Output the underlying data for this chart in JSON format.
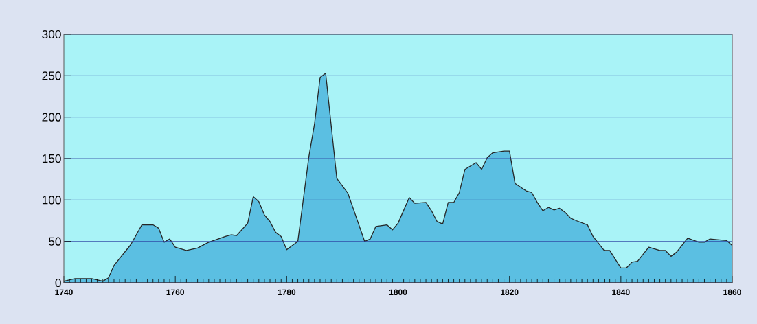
{
  "chart_data": {
    "type": "area",
    "x": [
      1740,
      1742,
      1745,
      1747,
      1748,
      1749,
      1752,
      1754,
      1756,
      1757,
      1758,
      1759,
      1760,
      1762,
      1764,
      1766,
      1769,
      1770,
      1771,
      1773,
      1774,
      1775,
      1776,
      1777,
      1778,
      1779,
      1780,
      1782,
      1784,
      1785,
      1786,
      1787,
      1789,
      1791,
      1794,
      1795,
      1796,
      1798,
      1799,
      1800,
      1802,
      1803,
      1805,
      1806,
      1807,
      1808,
      1809,
      1810,
      1811,
      1812,
      1814,
      1815,
      1816,
      1817,
      1819,
      1820,
      1821,
      1823,
      1824,
      1825,
      1826,
      1827,
      1828,
      1829,
      1830,
      1831,
      1832,
      1834,
      1835,
      1837,
      1838,
      1840,
      1841,
      1842,
      1843,
      1845,
      1847,
      1848,
      1849,
      1850,
      1852,
      1854,
      1855,
      1856,
      1859,
      1860
    ],
    "series": [
      {
        "color": "#5bbfe2",
        "values": [
          2,
          5,
          5,
          2,
          6,
          21,
          46,
          70,
          70,
          66,
          49,
          53,
          43,
          39,
          42,
          49,
          56,
          58,
          57,
          72,
          104,
          98,
          82,
          74,
          61,
          56,
          40,
          50,
          153,
          192,
          248,
          253,
          126,
          108,
          50,
          53,
          68,
          70,
          64,
          72,
          103,
          96,
          97,
          87,
          74,
          71,
          97,
          97,
          109,
          137,
          145,
          137,
          151,
          157,
          159,
          159,
          120,
          111,
          109,
          97,
          87,
          91,
          88,
          90,
          85,
          78,
          75,
          70,
          56,
          39,
          39,
          18,
          18,
          25,
          26,
          43,
          39,
          39,
          32,
          37,
          54,
          49,
          49,
          53,
          51,
          45
        ]
      }
    ],
    "xlim": [
      1740,
      1860
    ],
    "xticks": [
      1740,
      1760,
      1780,
      1800,
      1820,
      1840,
      1860
    ],
    "ylim": [
      0,
      300
    ],
    "yticks": [
      0,
      50,
      100,
      150,
      200,
      250,
      300
    ],
    "grid": "y"
  }
}
